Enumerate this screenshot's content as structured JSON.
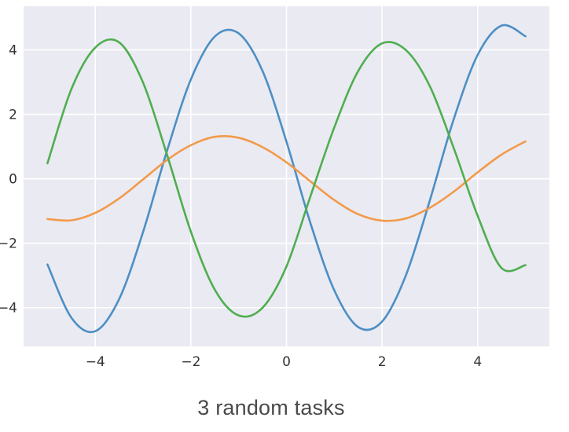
{
  "caption": "3 random tasks",
  "chart_data": {
    "type": "line",
    "title": "",
    "xlabel": "",
    "ylabel": "",
    "xlim": [
      -5.5,
      5.5
    ],
    "ylim": [
      -5.2,
      5.35
    ],
    "x_ticks": [
      -4,
      -2,
      0,
      2,
      4
    ],
    "x_tick_labels": [
      "−4",
      "−2",
      "0",
      "2",
      "4"
    ],
    "y_ticks": [
      -4,
      -2,
      0,
      2,
      4
    ],
    "y_tick_labels": [
      "−4",
      "−2",
      "0",
      "2",
      "4"
    ],
    "grid": true,
    "style": "seaborn-darkgrid",
    "legend": "none",
    "plot_background": "#eaeaf2",
    "grid_color": "#ffffff",
    "series": [
      {
        "color": "#4c8fc4",
        "x": [
          -5.0,
          -4.5,
          -4.0,
          -3.5,
          -3.0,
          -2.5,
          -2.0,
          -1.5,
          -1.0,
          -0.5,
          0.0,
          0.5,
          1.0,
          1.5,
          2.0,
          2.5,
          3.0,
          3.5,
          4.0,
          4.5,
          5.0
        ],
        "y": [
          -2.66,
          -4.31,
          -4.73,
          -3.73,
          -1.65,
          0.86,
          3.08,
          4.41,
          4.51,
          3.34,
          1.15,
          -1.37,
          -3.46,
          -4.6,
          -4.43,
          -2.99,
          -0.67,
          1.85,
          3.84,
          4.75,
          4.42
        ]
      },
      {
        "color": "#f29a4a",
        "x": [
          -5.0,
          -4.5,
          -4.0,
          -3.5,
          -3.0,
          -2.5,
          -2.0,
          -1.5,
          -1.0,
          -0.5,
          0.0,
          0.5,
          1.0,
          1.5,
          2.0,
          2.5,
          3.0,
          3.5,
          4.0,
          4.5,
          5.0
        ],
        "y": [
          -1.25,
          -1.29,
          -1.06,
          -0.61,
          -0.02,
          0.58,
          1.04,
          1.3,
          1.27,
          0.98,
          0.51,
          -0.08,
          -0.66,
          -1.1,
          -1.3,
          -1.23,
          -0.9,
          -0.4,
          0.2,
          0.75,
          1.16
        ]
      },
      {
        "color": "#4fae4f",
        "x": [
          -5.0,
          -4.5,
          -4.0,
          -3.5,
          -3.0,
          -2.5,
          -2.0,
          -1.5,
          -1.0,
          -0.5,
          0.0,
          0.5,
          1.0,
          1.5,
          2.0,
          2.5,
          3.0,
          3.5,
          4.0,
          4.5,
          5.0
        ],
        "y": [
          0.48,
          2.78,
          4.07,
          4.23,
          2.98,
          0.75,
          -1.64,
          -3.44,
          -4.24,
          -4.0,
          -2.72,
          -0.55,
          1.59,
          3.34,
          4.2,
          3.99,
          2.87,
          0.95,
          -1.15,
          -2.77,
          -2.68
        ]
      }
    ]
  }
}
